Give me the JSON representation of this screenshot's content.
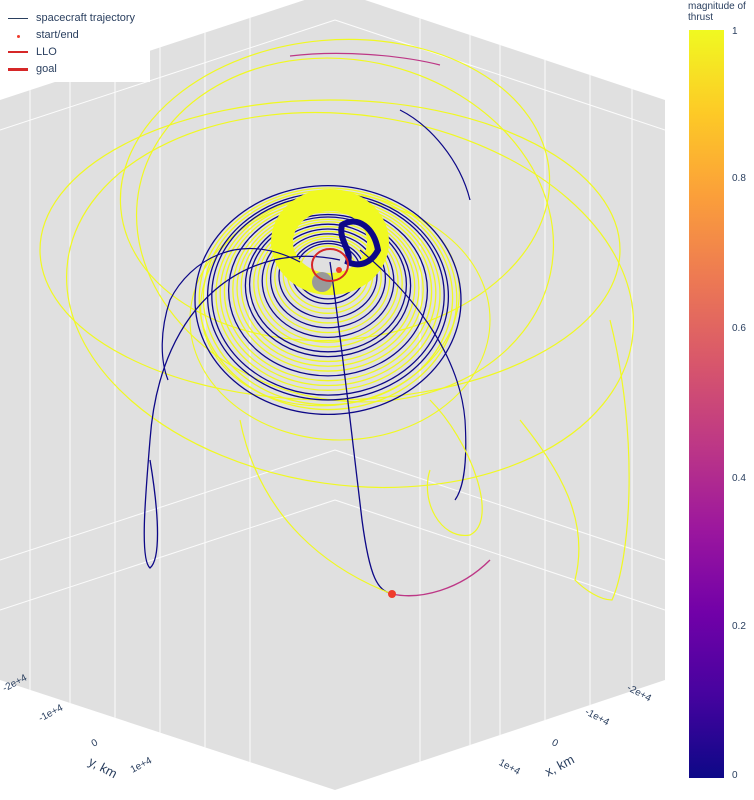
{
  "chart_data": {
    "type": "scatter3d",
    "title": "",
    "legend": {
      "placement": "top-left",
      "entries": [
        {
          "name": "spacecraft trajectory",
          "color": "#2a3f5f",
          "style": "line"
        },
        {
          "name": "start/end",
          "color": "#ef3b2c",
          "style": "dot"
        },
        {
          "name": "LLO",
          "color": "#d62728",
          "style": "line"
        },
        {
          "name": "goal",
          "color": "#d62728",
          "style": "thick-line"
        }
      ]
    },
    "colorbar": {
      "title": "magnitude of thrust",
      "range": [
        0,
        1
      ],
      "ticks": [
        "1",
        "0.8",
        "0.6",
        "0.4",
        "0.2",
        "0"
      ],
      "colorscale": "Plasma",
      "colors": [
        "#0d0887",
        "#46039f",
        "#7201a8",
        "#9c179e",
        "#bd3786",
        "#d8576b",
        "#ed7953",
        "#fb9f3a",
        "#fdca26",
        "#f0f921"
      ]
    },
    "axes": {
      "x": {
        "label": "x, km",
        "ticks": [
          "-2e+4",
          "-1e+4",
          "0",
          "1e+4"
        ]
      },
      "y": {
        "label": "y, km",
        "ticks": [
          "-2e+4",
          "-1e+4",
          "0",
          "1e+4"
        ]
      },
      "grid": true,
      "background": "#e5e5e5",
      "gridline_color": "#ffffff"
    },
    "series": [
      {
        "name": "spacecraft trajectory",
        "color_by": "magnitude of thrust"
      },
      {
        "name": "start/end",
        "color": "#ef3b2c"
      },
      {
        "name": "LLO",
        "color": "#d62728"
      },
      {
        "name": "goal",
        "color": "#d62728"
      }
    ],
    "moon_color": "#999999"
  }
}
